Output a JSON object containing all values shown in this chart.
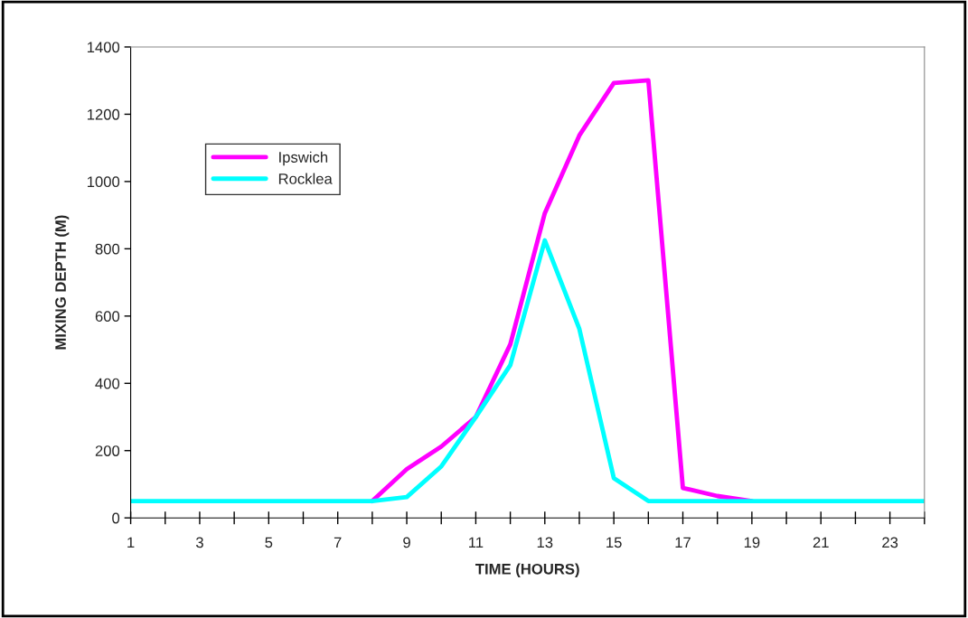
{
  "chart_data": {
    "type": "line",
    "xlabel": "TIME (HOURS)",
    "ylabel": "MIXING DEPTH (M)",
    "x": [
      1,
      2,
      3,
      4,
      5,
      6,
      7,
      8,
      9,
      10,
      11,
      12,
      13,
      14,
      15,
      16,
      17,
      18,
      19,
      20,
      21,
      22,
      23,
      24
    ],
    "series": [
      {
        "name": "Ipswich",
        "color": "#ff00ff",
        "values": [
          null,
          null,
          null,
          null,
          null,
          null,
          null,
          50,
          145,
          212,
          300,
          516,
          906,
          1137,
          1293,
          1301,
          89,
          65,
          50,
          null,
          null,
          null,
          null,
          null
        ]
      },
      {
        "name": "Rocklea",
        "color": "#00ffff",
        "values": [
          50,
          50,
          50,
          50,
          50,
          50,
          50,
          50,
          62,
          153,
          300,
          454,
          825,
          562,
          118,
          50,
          50,
          50,
          50,
          50,
          50,
          50,
          50,
          50
        ]
      }
    ],
    "xlim": [
      1,
      24
    ],
    "xticks": [
      1,
      {
        "value": 2,
        "label": null
      },
      3,
      {
        "value": 4,
        "label": null
      },
      5,
      {
        "value": 6,
        "label": null
      },
      7,
      {
        "value": 8,
        "label": null
      },
      9,
      {
        "value": 10,
        "label": null
      },
      11,
      {
        "value": 12,
        "label": null
      },
      13,
      {
        "value": 14,
        "label": null
      },
      15,
      {
        "value": 16,
        "label": null
      },
      17,
      {
        "value": 18,
        "label": null
      },
      19,
      {
        "value": 20,
        "label": null
      },
      21,
      {
        "value": 22,
        "label": null
      },
      23,
      {
        "value": 24,
        "label": null
      }
    ],
    "ylim": [
      0,
      1400
    ],
    "yticks": [
      0,
      200,
      400,
      600,
      800,
      1000,
      1200,
      1400
    ],
    "grid": false,
    "legend": "top left",
    "marker": "none",
    "line_style": "solid"
  }
}
